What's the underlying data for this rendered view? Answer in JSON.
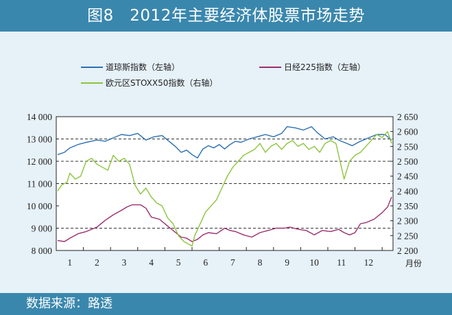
{
  "title": "图8　2012年主要经济体股票市场走势",
  "source": "数据来源：路透",
  "colors": {
    "dow": "#2a6fb0",
    "nikkei": "#9b2e6d",
    "stoxx": "#8cc43d",
    "banner": "#3a87ad",
    "background": "#e6f1f8"
  },
  "chart_data": {
    "type": "line",
    "x_unit_label": "月份",
    "x_ticks": [
      "1",
      "2",
      "3",
      "4",
      "5",
      "6",
      "7",
      "8",
      "9",
      "10",
      "11",
      "12"
    ],
    "x_range": [
      0.5,
      12.9
    ],
    "y_left": {
      "ticks": [
        "8 000",
        "9 000",
        "10 000",
        "11 000",
        "12 000",
        "13 000",
        "14 000"
      ],
      "range": [
        8000,
        14000
      ]
    },
    "y_right": {
      "ticks": [
        "2 200",
        "2 250",
        "2 300",
        "2 350",
        "2 400",
        "2 450",
        "2 500",
        "2 550",
        "2 600",
        "2 650"
      ],
      "range": [
        2200,
        2650
      ]
    },
    "gridlines_left": [
      9000,
      11000,
      13000
    ],
    "gridlines_right": [
      2500
    ],
    "grid_style": "dashed",
    "series": [
      {
        "key": "dow",
        "name": "道琼斯指数（左轴）",
        "axis": "left",
        "x": [
          0.55,
          0.8,
          1.0,
          1.3,
          1.6,
          2.0,
          2.3,
          2.6,
          2.9,
          3.2,
          3.5,
          3.8,
          4.1,
          4.4,
          4.7,
          4.9,
          5.1,
          5.3,
          5.5,
          5.7,
          5.9,
          6.1,
          6.3,
          6.5,
          6.7,
          6.9,
          7.1,
          7.3,
          7.6,
          7.9,
          8.2,
          8.5,
          8.8,
          9.0,
          9.3,
          9.6,
          9.9,
          10.1,
          10.4,
          10.7,
          10.9,
          11.1,
          11.4,
          11.7,
          12.0,
          12.3,
          12.6,
          12.85
        ],
        "values": [
          12300,
          12400,
          12600,
          12750,
          12850,
          12950,
          12900,
          13050,
          13200,
          13150,
          13250,
          12950,
          13100,
          13150,
          12850,
          12650,
          12400,
          12500,
          12300,
          12150,
          12550,
          12700,
          12600,
          12750,
          12550,
          12750,
          12900,
          12850,
          13000,
          13100,
          13200,
          13100,
          13250,
          13550,
          13500,
          13400,
          13550,
          13300,
          13000,
          13100,
          12950,
          12850,
          12700,
          12900,
          13050,
          13200,
          13200,
          12950
        ]
      },
      {
        "key": "nikkei",
        "name": "日经225指数（左轴）",
        "axis": "left",
        "x": [
          0.55,
          0.8,
          1.0,
          1.3,
          1.6,
          2.0,
          2.3,
          2.6,
          2.9,
          3.1,
          3.3,
          3.6,
          3.8,
          4.0,
          4.3,
          4.6,
          4.9,
          5.1,
          5.3,
          5.5,
          5.7,
          5.9,
          6.1,
          6.4,
          6.7,
          6.9,
          7.1,
          7.4,
          7.7,
          8.0,
          8.3,
          8.6,
          8.9,
          9.1,
          9.4,
          9.7,
          10.0,
          10.3,
          10.6,
          10.9,
          11.1,
          11.3,
          11.5,
          11.7,
          11.9,
          12.2,
          12.5,
          12.7,
          12.85
        ],
        "values": [
          8450,
          8400,
          8550,
          8750,
          8850,
          9050,
          9350,
          9600,
          9800,
          9950,
          10050,
          10050,
          9900,
          9500,
          9400,
          9100,
          8800,
          8600,
          8550,
          8400,
          8500,
          8700,
          8800,
          8750,
          9000,
          8900,
          8850,
          8700,
          8600,
          8800,
          8900,
          9000,
          9000,
          9050,
          8950,
          8900,
          8700,
          8900,
          8850,
          8950,
          8800,
          8700,
          8800,
          9200,
          9250,
          9400,
          9700,
          9950,
          10400
        ]
      },
      {
        "key": "stoxx",
        "name": "欧元区STOXX50指数（右轴）",
        "axis": "right",
        "x": [
          0.55,
          0.7,
          0.9,
          1.0,
          1.2,
          1.4,
          1.6,
          1.8,
          2.0,
          2.2,
          2.4,
          2.6,
          2.8,
          3.0,
          3.2,
          3.4,
          3.6,
          3.8,
          4.0,
          4.2,
          4.4,
          4.6,
          4.8,
          5.0,
          5.2,
          5.4,
          5.5,
          5.6,
          5.8,
          6.0,
          6.2,
          6.4,
          6.6,
          6.8,
          7.0,
          7.2,
          7.4,
          7.6,
          7.8,
          8.0,
          8.2,
          8.4,
          8.6,
          8.8,
          9.0,
          9.2,
          9.4,
          9.6,
          9.8,
          10.0,
          10.2,
          10.4,
          10.6,
          10.8,
          11.0,
          11.1,
          11.3,
          11.5,
          11.7,
          11.9,
          12.1,
          12.3,
          12.5,
          12.7,
          12.85
        ],
        "values": [
          2400,
          2420,
          2430,
          2460,
          2440,
          2450,
          2500,
          2510,
          2490,
          2480,
          2470,
          2520,
          2500,
          2510,
          2490,
          2420,
          2390,
          2410,
          2380,
          2360,
          2350,
          2310,
          2290,
          2250,
          2230,
          2220,
          2215,
          2250,
          2290,
          2330,
          2350,
          2370,
          2410,
          2450,
          2480,
          2500,
          2520,
          2530,
          2540,
          2560,
          2530,
          2550,
          2560,
          2540,
          2560,
          2570,
          2550,
          2560,
          2540,
          2550,
          2530,
          2560,
          2570,
          2560,
          2480,
          2440,
          2500,
          2520,
          2530,
          2550,
          2570,
          2590,
          2580,
          2600,
          2560
        ]
      }
    ]
  }
}
